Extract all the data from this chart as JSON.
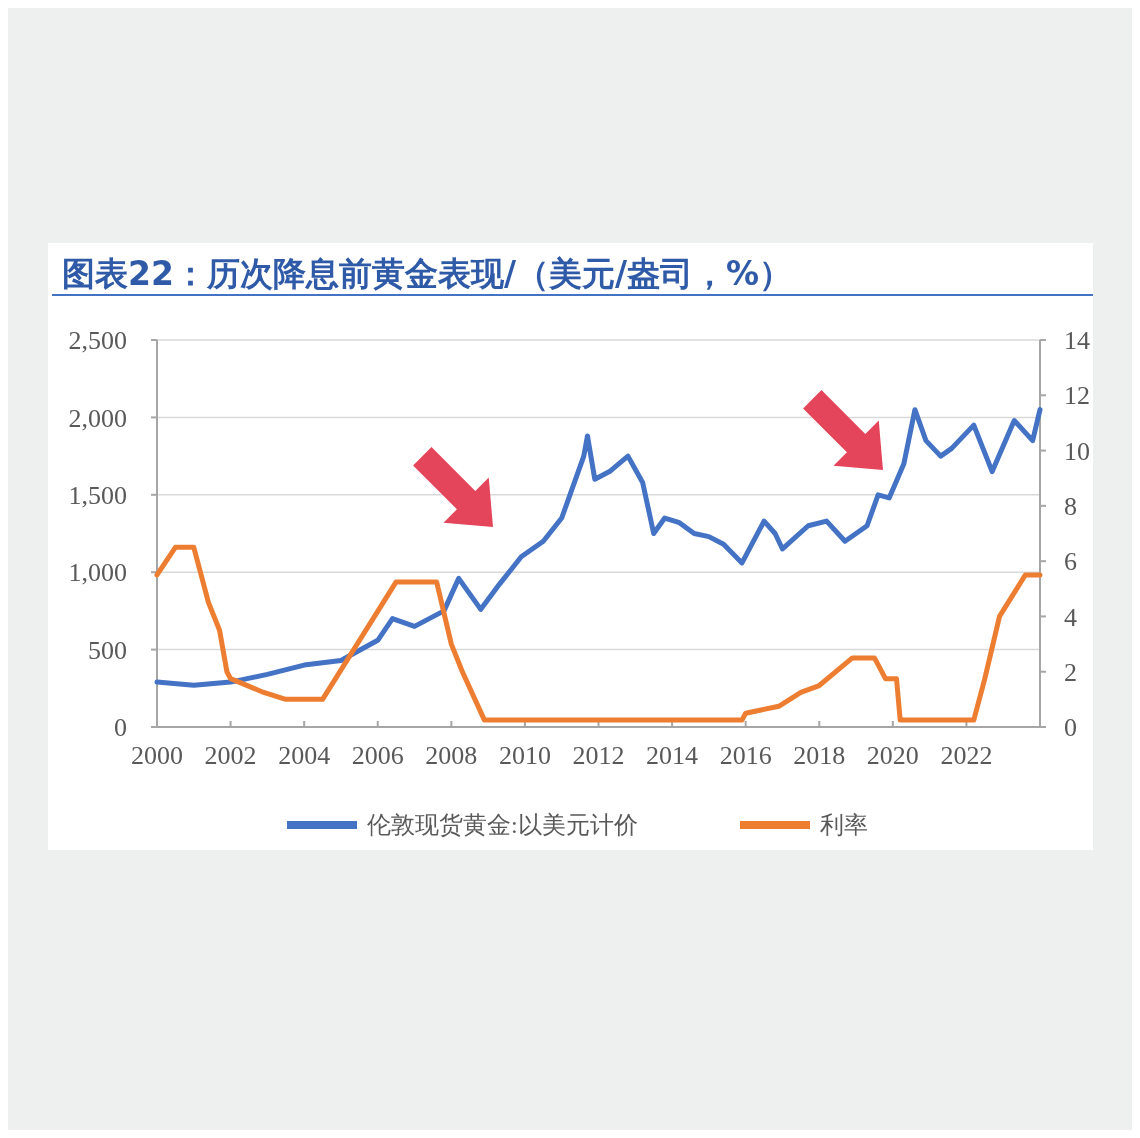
{
  "chart_data": {
    "type": "line",
    "title": "图表22：历次降息前黄金表现/（美元/盎司，%）",
    "xlim": [
      2000,
      2024
    ],
    "xticks": [
      2000,
      2002,
      2004,
      2006,
      2008,
      2010,
      2012,
      2014,
      2016,
      2018,
      2020,
      2022
    ],
    "ylim": [
      0,
      2500
    ],
    "yticks": [
      0,
      {
        "value": 500,
        "label": "500"
      },
      {
        "value": 1000,
        "label": "1,000"
      },
      {
        "value": 1500,
        "label": "1,500"
      },
      {
        "value": 2000,
        "label": "2,000"
      },
      {
        "value": 2500,
        "label": "2,500"
      }
    ],
    "y2lim": [
      0,
      14
    ],
    "y2ticks": [
      0,
      2,
      4,
      6,
      8,
      10,
      12,
      14
    ],
    "grid": "y",
    "legend": "bottom",
    "marker": "none",
    "line_style": "solid",
    "series": [
      {
        "name": "伦敦现货黄金:以美元计价",
        "color": "#4472c4",
        "x": [
          2000,
          2001,
          2002,
          2003,
          2004,
          2005,
          2006,
          2006.4,
          2007,
          2007.8,
          2008.2,
          2008.8,
          2009.3,
          2009.9,
          2010.5,
          2011,
          2011.6,
          2011.7,
          2011.9,
          2012.3,
          2012.8,
          2013.2,
          2013.5,
          2013.8,
          2014.2,
          2014.6,
          2015,
          2015.4,
          2015.9,
          2016.5,
          2016.8,
          2017,
          2017.7,
          2018.2,
          2018.7,
          2019.3,
          2019.6,
          2019.9,
          2020.3,
          2020.6,
          2020.9,
          2021.3,
          2021.6,
          2022.2,
          2022.7,
          2023.3,
          2023.8,
          2024
        ],
        "values": [
          290,
          270,
          290,
          340,
          400,
          430,
          560,
          700,
          650,
          750,
          960,
          760,
          920,
          1100,
          1200,
          1350,
          1750,
          1880,
          1600,
          1650,
          1750,
          1580,
          1250,
          1350,
          1320,
          1250,
          1230,
          1180,
          1060,
          1330,
          1250,
          1150,
          1300,
          1330,
          1200,
          1300,
          1500,
          1480,
          1700,
          2050,
          1850,
          1750,
          1800,
          1950,
          1650,
          1980,
          1850,
          2050
        ]
      },
      {
        "name": "利率",
        "color": "#ed7d31",
        "axis": "y2",
        "x": [
          2000,
          2000.5,
          2001,
          2001.4,
          2001.7,
          2001.9,
          2002,
          2002.9,
          2003.5,
          2004.5,
          2006.5,
          2007.6,
          2008,
          2008.3,
          2008.9,
          2015.9,
          2016,
          2016.9,
          2017.5,
          2018,
          2018.9,
          2019.5,
          2019.8,
          2020.1,
          2020.2,
          2022.2,
          2022.5,
          2022.9,
          2023.6,
          2024
        ],
        "values": [
          5.5,
          6.5,
          6.5,
          4.5,
          3.5,
          2,
          1.75,
          1.25,
          1,
          1,
          5.25,
          5.25,
          3,
          2,
          0.25,
          0.25,
          0.5,
          0.75,
          1.25,
          1.5,
          2.5,
          2.5,
          1.75,
          1.75,
          0.25,
          0.25,
          1.75,
          4,
          5.5,
          5.5
        ]
      }
    ]
  }
}
